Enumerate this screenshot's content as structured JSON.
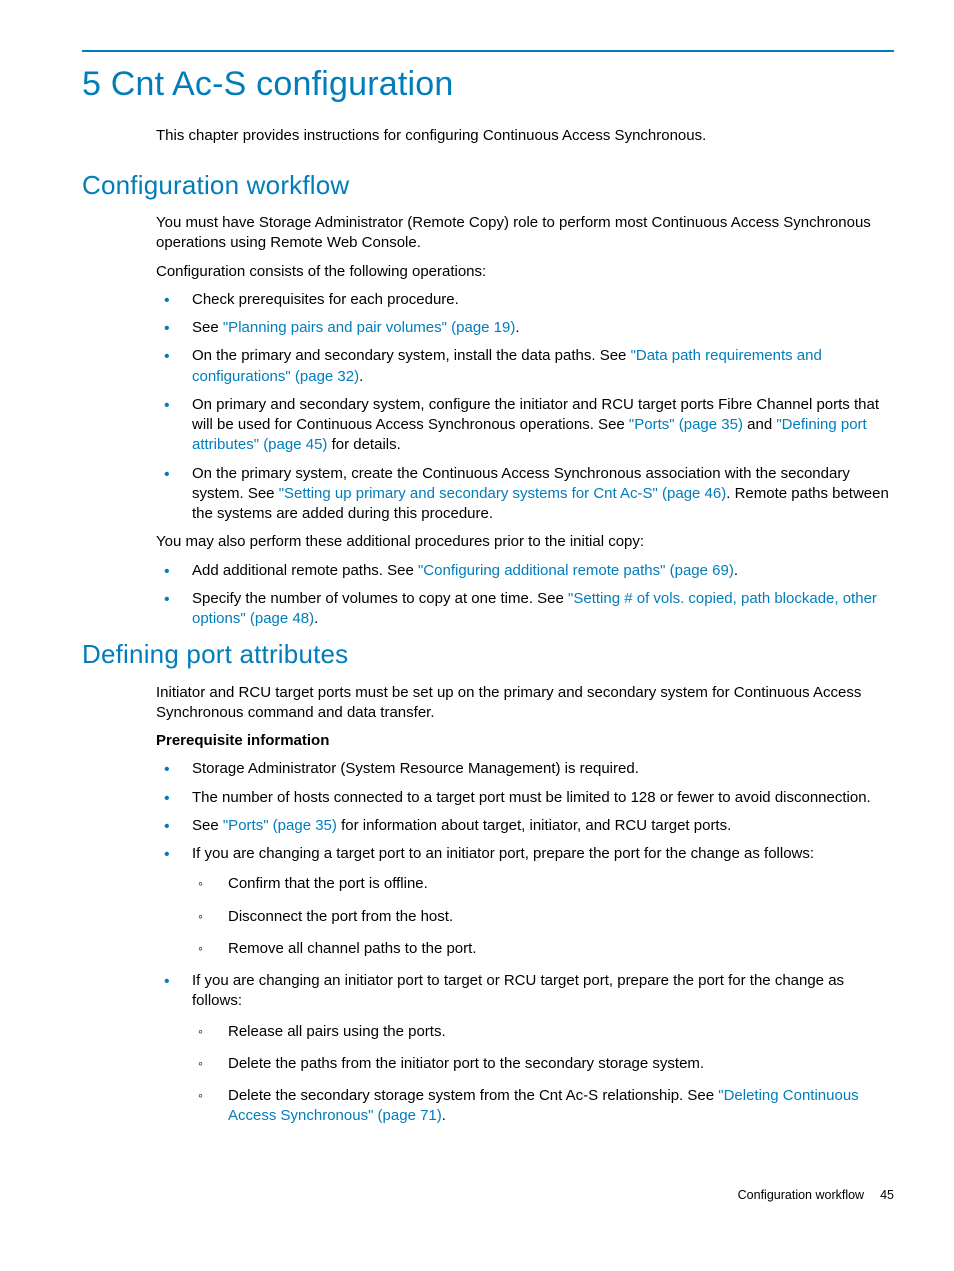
{
  "colors": {
    "accent": "#007dba",
    "text": "#000000",
    "background": "#ffffff"
  },
  "chapter": {
    "title": "5 Cnt Ac-S configuration",
    "intro": "This chapter provides instructions for configuring Continuous Access Synchronous."
  },
  "section1": {
    "title": "Configuration workflow",
    "p1": "You must have Storage Administrator (Remote Copy) role to perform most Continuous Access Synchronous operations using Remote Web Console.",
    "p2": "Configuration consists of the following operations:",
    "b1": "Check prerequisites for each procedure.",
    "b2_pre": "See ",
    "b2_link": "\"Planning pairs and pair volumes\" (page 19)",
    "b2_post": ".",
    "b3_pre": "On the primary and secondary system, install the data paths. See ",
    "b3_link": "\"Data path requirements and configurations\" (page 32)",
    "b3_post": ".",
    "b4_pre": "On primary and secondary system, configure the initiator and RCU target ports Fibre Channel ports that will be used for Continuous Access Synchronous operations. See ",
    "b4_link1": "\"Ports\" (page 35)",
    "b4_mid": " and ",
    "b4_link2": "\"Defining port attributes\" (page 45)",
    "b4_post": " for details.",
    "b5_pre": "On the primary system, create the Continuous Access Synchronous association with the secondary system. See ",
    "b5_link": "\"Setting up primary and secondary systems for Cnt Ac-S\" (page 46)",
    "b5_post": ". Remote paths between the systems are added during this procedure.",
    "p3": "You may also perform these additional procedures prior to the initial copy:",
    "b6_pre": "Add additional remote paths. See ",
    "b6_link": "\"Configuring additional remote paths\" (page 69)",
    "b6_post": ".",
    "b7_pre": "Specify the number of volumes to copy at one time. See ",
    "b7_link": "\"Setting # of vols. copied, path blockade, other options\" (page 48)",
    "b7_post": "."
  },
  "section2": {
    "title": "Defining port attributes",
    "p1": "Initiator and RCU target ports must be set up on the primary and secondary system for Continuous Access Synchronous command and data transfer.",
    "prereq_heading": "Prerequisite information",
    "b1": "Storage Administrator (System Resource Management) is required.",
    "b2": "The number of hosts connected to a target port must be limited to 128 or fewer to avoid disconnection.",
    "b3_pre": "See ",
    "b3_link": "\"Ports\" (page 35)",
    "b3_post": " for information about target, initiator, and RCU target ports.",
    "b4": "If you are changing a target port to an initiator port, prepare the port for the change as follows:",
    "b4_s1": "Confirm that the port is offline.",
    "b4_s2": "Disconnect the port from the host.",
    "b4_s3": "Remove all channel paths to the port.",
    "b5": "If you are changing an initiator port to target or RCU target port, prepare the port for the change as follows:",
    "b5_s1": "Release all pairs using the ports.",
    "b5_s2": "Delete the paths from the initiator port to the secondary storage system.",
    "b5_s3_pre": "Delete the secondary storage system from the Cnt Ac-S relationship. See ",
    "b5_s3_link": "\"Deleting Continuous Access Synchronous\" (page 71)",
    "b5_s3_post": "."
  },
  "footer": {
    "section": "Configuration workflow",
    "page": "45"
  }
}
